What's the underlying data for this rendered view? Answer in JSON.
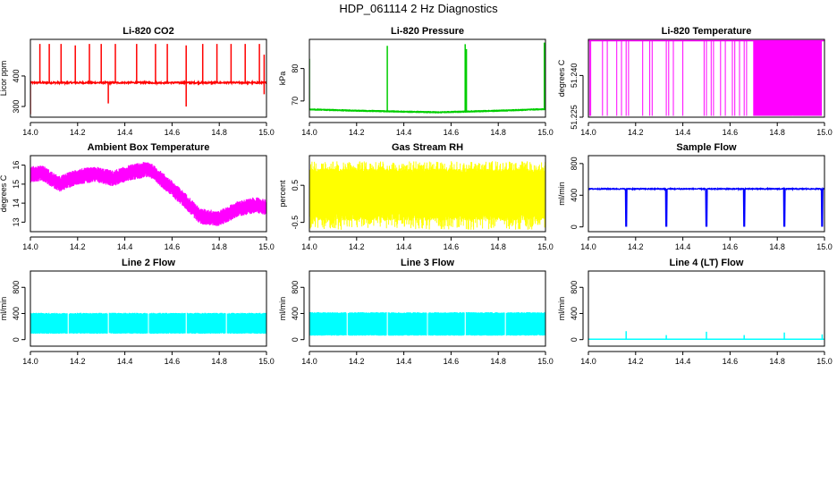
{
  "figure_title": "HDP_061114 2 Hz Diagnostics",
  "colors": {
    "red": "#ff0000",
    "green": "#00cd00",
    "magenta": "#ff00ff",
    "yellow": "#ffff00",
    "blue": "#0000ff",
    "cyan": "#00ffff",
    "axis": "#000000"
  },
  "chart_data": [
    {
      "type": "line",
      "title": "Li-820 CO2",
      "ylabel": "Licor ppm",
      "xlim": [
        14.0,
        15.0
      ],
      "ylim": [
        265,
        520
      ],
      "xticks": [
        14.0,
        14.2,
        14.4,
        14.6,
        14.8,
        15.0
      ],
      "xtick_labels": [
        "14.0",
        "14.2",
        "14.4",
        "14.6",
        "14.8",
        "15.0"
      ],
      "yticks": [
        300,
        400
      ],
      "ytick_labels": [
        "300",
        "400"
      ],
      "color": "red",
      "baseline": 378,
      "band": 5,
      "spikes": [
        {
          "x": 14.0,
          "low": 275,
          "high": 378
        },
        {
          "x": 14.04,
          "low": 378,
          "high": 505
        },
        {
          "x": 14.08,
          "low": 378,
          "high": 505
        },
        {
          "x": 14.13,
          "low": 378,
          "high": 505
        },
        {
          "x": 14.19,
          "low": 378,
          "high": 500
        },
        {
          "x": 14.25,
          "low": 378,
          "high": 505
        },
        {
          "x": 14.3,
          "low": 378,
          "high": 505
        },
        {
          "x": 14.33,
          "low": 310,
          "high": 378
        },
        {
          "x": 14.36,
          "low": 378,
          "high": 505
        },
        {
          "x": 14.45,
          "low": 378,
          "high": 505
        },
        {
          "x": 14.53,
          "low": 378,
          "high": 505
        },
        {
          "x": 14.58,
          "low": 378,
          "high": 505
        },
        {
          "x": 14.66,
          "low": 300,
          "high": 500
        },
        {
          "x": 14.73,
          "low": 378,
          "high": 505
        },
        {
          "x": 14.79,
          "low": 378,
          "high": 505
        },
        {
          "x": 14.85,
          "low": 378,
          "high": 505
        },
        {
          "x": 14.91,
          "low": 378,
          "high": 505
        },
        {
          "x": 14.97,
          "low": 378,
          "high": 505
        },
        {
          "x": 14.99,
          "low": 340,
          "high": 470
        }
      ]
    },
    {
      "type": "line",
      "title": "Li-820 Pressure",
      "ylabel": "kPa",
      "xlim": [
        14.0,
        15.0
      ],
      "ylim": [
        65,
        89
      ],
      "xticks": [
        14.0,
        14.2,
        14.4,
        14.6,
        14.8,
        15.0
      ],
      "xtick_labels": [
        "14.0",
        "14.2",
        "14.4",
        "14.6",
        "14.8",
        "15.0"
      ],
      "yticks": [
        70,
        80
      ],
      "ytick_labels": [
        "70",
        "80"
      ],
      "color": "green",
      "trend_x": [
        14.0,
        14.2,
        14.4,
        14.55,
        14.7,
        14.85,
        15.0
      ],
      "trend_y": [
        67.4,
        67.0,
        66.7,
        66.5,
        66.8,
        67.1,
        67.5
      ],
      "band": 0.3,
      "spikes": [
        {
          "x": 14.0,
          "low": 67.4,
          "high": 83
        },
        {
          "x": 14.33,
          "low": 66.8,
          "high": 87
        },
        {
          "x": 14.66,
          "low": 66.7,
          "high": 87.5
        },
        {
          "x": 14.665,
          "low": 66.7,
          "high": 86
        },
        {
          "x": 14.995,
          "low": 67.5,
          "high": 88
        }
      ]
    },
    {
      "type": "line",
      "title": "Li-820 Temperature",
      "ylabel": "degrees C",
      "xlim": [
        14.0,
        15.0
      ],
      "ylim": [
        51.225,
        51.253
      ],
      "xticks": [
        14.0,
        14.2,
        14.4,
        14.6,
        14.8,
        15.0
      ],
      "xtick_labels": [
        "14.0",
        "14.2",
        "14.4",
        "14.6",
        "14.8",
        "15.0"
      ],
      "yticks": [
        51.225,
        51.24
      ],
      "ytick_labels": [
        "51.225",
        "51.240"
      ],
      "color": "magenta",
      "top_level": 51.2525,
      "drop_level": 51.2255,
      "drop_x": [
        14.005,
        14.01,
        14.06,
        14.08,
        14.12,
        14.14,
        14.16,
        14.17,
        14.23,
        14.26,
        14.27,
        14.33,
        14.34,
        14.36,
        14.4,
        14.49,
        14.5,
        14.52,
        14.53,
        14.56,
        14.58,
        14.61,
        14.62,
        14.64,
        14.66,
        14.67
      ],
      "dense_start": 14.7,
      "dense_end": 14.99
    },
    {
      "type": "line",
      "title": "Ambient Box Temperature",
      "ylabel": "degrees C",
      "xlim": [
        14.0,
        15.0
      ],
      "ylim": [
        12.5,
        16.5
      ],
      "xticks": [
        14.0,
        14.2,
        14.4,
        14.6,
        14.8,
        15.0
      ],
      "xtick_labels": [
        "14.0",
        "14.2",
        "14.4",
        "14.6",
        "14.8",
        "15.0"
      ],
      "yticks": [
        13,
        14,
        15,
        16
      ],
      "ytick_labels": [
        "13",
        "14",
        "15",
        "16"
      ],
      "color": "magenta",
      "trend_x": [
        14.0,
        14.05,
        14.12,
        14.2,
        14.28,
        14.35,
        14.42,
        14.5,
        14.57,
        14.65,
        14.72,
        14.8,
        14.88,
        14.95,
        15.0
      ],
      "trend_y": [
        15.5,
        15.6,
        15.0,
        15.4,
        15.5,
        15.3,
        15.6,
        15.8,
        15.1,
        14.2,
        13.3,
        13.2,
        13.7,
        13.9,
        13.8
      ],
      "band": 0.35
    },
    {
      "type": "line",
      "title": "Gas Stream RH",
      "ylabel": "percent",
      "xlim": [
        14.0,
        15.0
      ],
      "ylim": [
        -0.75,
        1.3
      ],
      "xticks": [
        14.0,
        14.2,
        14.4,
        14.6,
        14.8,
        15.0
      ],
      "xtick_labels": [
        "14.0",
        "14.2",
        "14.4",
        "14.6",
        "14.8",
        "15.0"
      ],
      "yticks": [
        -0.5,
        0.5
      ],
      "ytick_labels": [
        "-0.5",
        "0.5"
      ],
      "color": "yellow",
      "fill_low": -0.45,
      "fill_high": 0.95,
      "outer_low": -0.7,
      "outer_high": 1.15
    },
    {
      "type": "line",
      "title": "Sample Flow",
      "ylabel": "ml/min",
      "xlim": [
        14.0,
        15.0
      ],
      "ylim": [
        -60,
        900
      ],
      "xticks": [
        14.0,
        14.2,
        14.4,
        14.6,
        14.8,
        15.0
      ],
      "xtick_labels": [
        "14.0",
        "14.2",
        "14.4",
        "14.6",
        "14.8",
        "15.0"
      ],
      "yticks": [
        0,
        400,
        800
      ],
      "ytick_labels": [
        "0",
        "400",
        "800"
      ],
      "color": "blue",
      "baseline": 480,
      "band": 12,
      "dips": [
        14.16,
        14.33,
        14.5,
        14.66,
        14.83,
        14.99
      ],
      "dip_low": 10
    },
    {
      "type": "line",
      "title": "Line 2 Flow",
      "ylabel": "ml/min",
      "xlim": [
        14.0,
        15.0
      ],
      "ylim": [
        -100,
        1050
      ],
      "xticks": [
        14.0,
        14.2,
        14.4,
        14.6,
        14.8,
        15.0
      ],
      "xtick_labels": [
        "14.0",
        "14.2",
        "14.4",
        "14.6",
        "14.8",
        "15.0"
      ],
      "yticks": [
        0,
        400,
        800
      ],
      "ytick_labels": [
        "0",
        "400",
        "800"
      ],
      "color": "cyan",
      "fill_low": 90,
      "fill_high": 410,
      "gaps": [
        14.16,
        14.33,
        14.5,
        14.66,
        14.83
      ]
    },
    {
      "type": "line",
      "title": "Line 3 Flow",
      "ylabel": "ml/min",
      "xlim": [
        14.0,
        15.0
      ],
      "ylim": [
        -100,
        1050
      ],
      "xticks": [
        14.0,
        14.2,
        14.4,
        14.6,
        14.8,
        15.0
      ],
      "xtick_labels": [
        "14.0",
        "14.2",
        "14.4",
        "14.6",
        "14.8",
        "15.0"
      ],
      "yticks": [
        0,
        400,
        800
      ],
      "ytick_labels": [
        "0",
        "400",
        "800"
      ],
      "color": "cyan",
      "fill_low": 60,
      "fill_high": 420,
      "gaps": [
        14.16,
        14.33,
        14.5,
        14.66,
        14.83
      ]
    },
    {
      "type": "line",
      "title": "Line 4 (LT) Flow",
      "ylabel": "ml/min",
      "xlim": [
        14.0,
        15.0
      ],
      "ylim": [
        -100,
        1050
      ],
      "xticks": [
        14.0,
        14.2,
        14.4,
        14.6,
        14.8,
        15.0
      ],
      "xtick_labels": [
        "14.0",
        "14.2",
        "14.4",
        "14.6",
        "14.8",
        "15.0"
      ],
      "yticks": [
        0,
        400,
        800
      ],
      "ytick_labels": [
        "0",
        "400",
        "800"
      ],
      "color": "cyan",
      "baseline": 5,
      "spikes": [
        {
          "x": 14.16,
          "low": 5,
          "high": 130
        },
        {
          "x": 14.33,
          "low": 5,
          "high": 70
        },
        {
          "x": 14.5,
          "low": 5,
          "high": 120
        },
        {
          "x": 14.66,
          "low": 5,
          "high": 70
        },
        {
          "x": 14.83,
          "low": 5,
          "high": 110
        },
        {
          "x": 14.99,
          "low": 5,
          "high": 80
        }
      ]
    }
  ]
}
